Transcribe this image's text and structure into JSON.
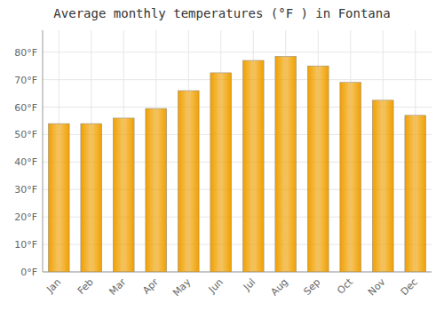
{
  "chart_data": {
    "type": "bar",
    "title": "Average monthly temperatures (°F ) in Fontana",
    "categories": [
      "Jan",
      "Feb",
      "Mar",
      "Apr",
      "May",
      "Jun",
      "Jul",
      "Aug",
      "Sep",
      "Oct",
      "Nov",
      "Dec"
    ],
    "values": [
      54,
      54,
      56,
      59.5,
      66,
      72.5,
      77,
      78.5,
      75,
      69,
      62.5,
      57
    ],
    "color": "#F0A000",
    "ylim": [
      0,
      88
    ],
    "yticks": [
      {
        "value": 0,
        "label": "0°F"
      },
      {
        "value": 10,
        "label": "10°F"
      },
      {
        "value": 20,
        "label": "20°F"
      },
      {
        "value": 30,
        "label": "30°F"
      },
      {
        "value": 40,
        "label": "40°F"
      },
      {
        "value": 50,
        "label": "50°F"
      },
      {
        "value": 60,
        "label": "60°F"
      },
      {
        "value": 70,
        "label": "70°F"
      },
      {
        "value": 80,
        "label": "80°F"
      }
    ],
    "grid": true
  }
}
